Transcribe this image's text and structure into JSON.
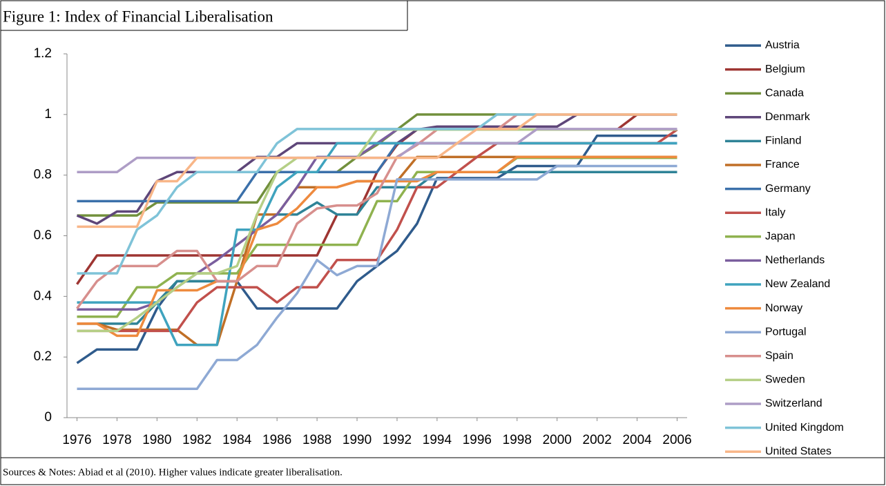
{
  "chart_data": {
    "type": "line",
    "title": "Figure 1: Index of Financial Liberalisation",
    "note": "Sources & Notes: Abiad et al (2010). Higher values indicate greater liberalisation.",
    "x": [
      1976,
      1977,
      1978,
      1979,
      1980,
      1981,
      1982,
      1983,
      1984,
      1985,
      1986,
      1987,
      1988,
      1989,
      1990,
      1991,
      1992,
      1993,
      1994,
      1995,
      1996,
      1997,
      1998,
      1999,
      2000,
      2001,
      2002,
      2003,
      2004,
      2005,
      2006
    ],
    "xlim": [
      1975.5,
      2006.5
    ],
    "xticks": [
      1976,
      1978,
      1980,
      1982,
      1984,
      1986,
      1988,
      1990,
      1992,
      1994,
      1996,
      1998,
      2000,
      2002,
      2004,
      2006
    ],
    "ylim": [
      0,
      1.2
    ],
    "yticks": [
      0,
      0.2,
      0.4,
      0.6,
      0.8,
      1,
      1.2
    ],
    "legend": "right",
    "series": [
      {
        "name": "Austria",
        "color": "#2F5B8C",
        "values": [
          0.18,
          0.225,
          0.225,
          0.225,
          0.36,
          0.45,
          0.45,
          0.45,
          0.45,
          0.36,
          0.36,
          0.36,
          0.36,
          0.36,
          0.45,
          0.5,
          0.55,
          0.64,
          0.79,
          0.79,
          0.79,
          0.79,
          0.83,
          0.83,
          0.83,
          0.83,
          0.93,
          0.93,
          0.93,
          0.93,
          0.93
        ]
      },
      {
        "name": "Belgium",
        "color": "#9E3532",
        "values": [
          0.44,
          0.535,
          0.535,
          0.535,
          0.535,
          0.535,
          0.535,
          0.535,
          0.535,
          0.535,
          0.535,
          0.535,
          0.535,
          0.67,
          0.67,
          0.81,
          0.9,
          0.95,
          0.95,
          0.95,
          0.95,
          0.95,
          0.95,
          0.95,
          0.95,
          0.95,
          0.95,
          0.95,
          1,
          1,
          1
        ]
      },
      {
        "name": "Canada",
        "color": "#72903C",
        "values": [
          0.667,
          0.667,
          0.667,
          0.667,
          0.71,
          0.71,
          0.71,
          0.71,
          0.71,
          0.71,
          0.81,
          0.81,
          0.81,
          0.81,
          0.86,
          0.9,
          0.95,
          1,
          1,
          1,
          1,
          1,
          1,
          1,
          1,
          1,
          1,
          1,
          1,
          1,
          1
        ]
      },
      {
        "name": "Denmark",
        "color": "#5E4679",
        "values": [
          0.667,
          0.64,
          0.68,
          0.68,
          0.78,
          0.81,
          0.81,
          0.81,
          0.81,
          0.86,
          0.86,
          0.905,
          0.905,
          0.905,
          0.905,
          0.905,
          0.905,
          0.95,
          0.96,
          0.96,
          0.96,
          0.96,
          0.96,
          0.96,
          0.96,
          1,
          1,
          1,
          1,
          1,
          1
        ]
      },
      {
        "name": "Finland",
        "color": "#2F8397",
        "values": [
          0.31,
          0.31,
          0.31,
          0.31,
          0.38,
          0.45,
          0.45,
          0.45,
          0.45,
          0.67,
          0.67,
          0.67,
          0.71,
          0.67,
          0.67,
          0.76,
          0.76,
          0.76,
          0.81,
          0.81,
          0.81,
          0.81,
          0.81,
          0.81,
          0.81,
          0.81,
          0.81,
          0.81,
          0.81,
          0.81,
          0.81
        ]
      },
      {
        "name": "France",
        "color": "#C06F26",
        "values": [
          0.31,
          0.31,
          0.29,
          0.29,
          0.29,
          0.29,
          0.24,
          0.24,
          0.45,
          0.67,
          0.67,
          0.76,
          0.76,
          0.76,
          0.78,
          0.78,
          0.78,
          0.86,
          0.86,
          0.86,
          0.86,
          0.86,
          0.86,
          0.86,
          0.86,
          0.86,
          0.86,
          0.86,
          0.86,
          0.86,
          0.86
        ]
      },
      {
        "name": "Germany",
        "color": "#3B70AA",
        "values": [
          0.714,
          0.714,
          0.714,
          0.714,
          0.714,
          0.714,
          0.714,
          0.714,
          0.714,
          0.81,
          0.81,
          0.81,
          0.81,
          0.81,
          0.81,
          0.81,
          0.905,
          0.905,
          0.905,
          0.905,
          0.905,
          0.905,
          0.905,
          0.905,
          0.905,
          0.905,
          0.905,
          0.905,
          0.905,
          0.905,
          0.905
        ]
      },
      {
        "name": "Italy",
        "color": "#C1504C",
        "values": [
          0.286,
          0.286,
          0.286,
          0.286,
          0.286,
          0.286,
          0.38,
          0.43,
          0.43,
          0.43,
          0.38,
          0.43,
          0.43,
          0.52,
          0.52,
          0.52,
          0.62,
          0.76,
          0.76,
          0.81,
          0.86,
          0.905,
          0.905,
          0.905,
          0.905,
          0.905,
          0.905,
          0.905,
          0.905,
          0.905,
          0.95
        ]
      },
      {
        "name": "Japan",
        "color": "#8FB24F",
        "values": [
          0.333,
          0.333,
          0.333,
          0.43,
          0.43,
          0.476,
          0.476,
          0.476,
          0.476,
          0.57,
          0.57,
          0.57,
          0.57,
          0.57,
          0.57,
          0.714,
          0.714,
          0.81,
          0.81,
          0.81,
          0.81,
          0.81,
          0.857,
          0.857,
          0.857,
          0.857,
          0.857,
          0.857,
          0.857,
          0.857,
          0.857
        ]
      },
      {
        "name": "Netherlands",
        "color": "#7A5E9E",
        "values": [
          0.357,
          0.357,
          0.357,
          0.357,
          0.38,
          0.43,
          0.476,
          0.52,
          0.57,
          0.62,
          0.67,
          0.76,
          0.86,
          0.86,
          0.86,
          0.905,
          0.95,
          0.95,
          0.95,
          0.95,
          0.95,
          0.95,
          0.95,
          0.95,
          0.95,
          0.95,
          0.95,
          0.95,
          0.95,
          0.95,
          0.95
        ]
      },
      {
        "name": "New Zealand",
        "color": "#3FA3BE",
        "values": [
          0.38,
          0.38,
          0.38,
          0.38,
          0.38,
          0.24,
          0.24,
          0.24,
          0.62,
          0.62,
          0.76,
          0.81,
          0.81,
          0.905,
          0.905,
          0.905,
          0.905,
          0.905,
          0.905,
          0.905,
          0.905,
          0.905,
          0.905,
          0.905,
          0.905,
          0.905,
          0.905,
          0.905,
          0.905,
          0.905,
          0.905
        ]
      },
      {
        "name": "Norway",
        "color": "#EE8A3E",
        "values": [
          0.31,
          0.31,
          0.27,
          0.27,
          0.42,
          0.42,
          0.42,
          0.45,
          0.45,
          0.62,
          0.64,
          0.69,
          0.76,
          0.76,
          0.78,
          0.78,
          0.78,
          0.78,
          0.81,
          0.81,
          0.81,
          0.81,
          0.86,
          0.86,
          0.86,
          0.86,
          0.86,
          0.86,
          0.86,
          0.86,
          0.86
        ]
      },
      {
        "name": "Portugal",
        "color": "#8EA9D4",
        "values": [
          0.095,
          0.095,
          0.095,
          0.095,
          0.095,
          0.095,
          0.095,
          0.19,
          0.19,
          0.24,
          0.33,
          0.41,
          0.52,
          0.47,
          0.5,
          0.5,
          0.786,
          0.786,
          0.786,
          0.786,
          0.786,
          0.786,
          0.786,
          0.786,
          0.83,
          0.83,
          0.83,
          0.83,
          0.83,
          0.83,
          0.83
        ]
      },
      {
        "name": "Spain",
        "color": "#D78F8D",
        "values": [
          0.36,
          0.45,
          0.5,
          0.5,
          0.5,
          0.55,
          0.55,
          0.45,
          0.45,
          0.5,
          0.5,
          0.64,
          0.69,
          0.7,
          0.7,
          0.74,
          0.86,
          0.9,
          0.95,
          0.95,
          0.95,
          0.95,
          1,
          1,
          1,
          1,
          1,
          1,
          1,
          1,
          1
        ]
      },
      {
        "name": "Sweden",
        "color": "#B5CF86",
        "values": [
          0.286,
          0.286,
          0.286,
          0.33,
          0.38,
          0.43,
          0.476,
          0.476,
          0.5,
          0.67,
          0.81,
          0.857,
          0.857,
          0.857,
          0.857,
          0.95,
          0.95,
          0.95,
          0.95,
          0.95,
          0.95,
          0.95,
          0.95,
          0.95,
          0.95,
          0.95,
          0.95,
          0.95,
          0.95,
          0.95,
          0.95
        ]
      },
      {
        "name": "Switzerland",
        "color": "#AE9DC6",
        "values": [
          0.81,
          0.81,
          0.81,
          0.857,
          0.857,
          0.857,
          0.857,
          0.857,
          0.857,
          0.857,
          0.857,
          0.857,
          0.857,
          0.857,
          0.857,
          0.857,
          0.857,
          0.905,
          0.905,
          0.905,
          0.905,
          0.905,
          0.905,
          0.952,
          0.952,
          0.952,
          0.952,
          0.952,
          0.952,
          0.952,
          0.952
        ]
      },
      {
        "name": "United Kingdom",
        "color": "#7FC3D8",
        "values": [
          0.476,
          0.476,
          0.476,
          0.62,
          0.667,
          0.76,
          0.81,
          0.81,
          0.81,
          0.81,
          0.905,
          0.952,
          0.952,
          0.952,
          0.952,
          0.952,
          0.952,
          0.952,
          0.952,
          0.952,
          0.952,
          1,
          1,
          1,
          1,
          1,
          1,
          1,
          1,
          1,
          1
        ]
      },
      {
        "name": "United States",
        "color": "#F8B688",
        "values": [
          0.63,
          0.63,
          0.63,
          0.63,
          0.78,
          0.78,
          0.857,
          0.857,
          0.857,
          0.857,
          0.857,
          0.857,
          0.857,
          0.857,
          0.857,
          0.857,
          0.857,
          0.857,
          0.857,
          0.905,
          0.952,
          0.952,
          0.952,
          1,
          1,
          1,
          1,
          1,
          1,
          1,
          1
        ]
      }
    ]
  }
}
